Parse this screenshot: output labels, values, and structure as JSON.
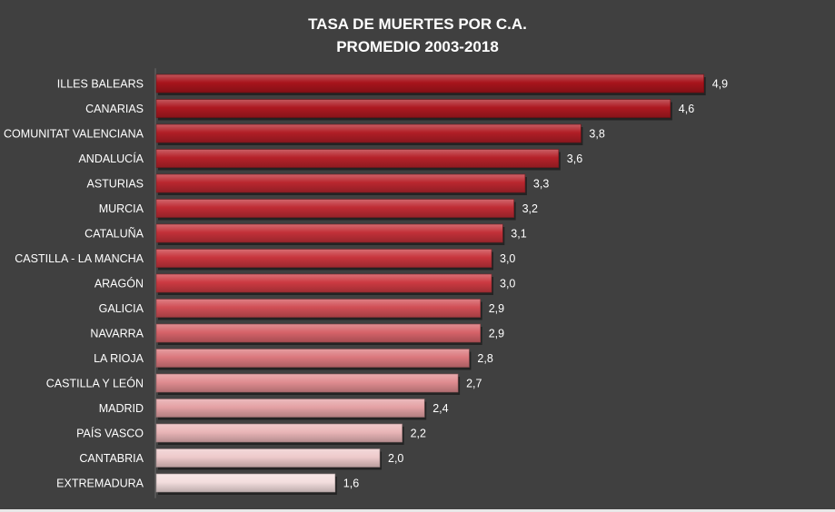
{
  "chart_data": {
    "type": "bar",
    "orientation": "horizontal",
    "title": "TASA DE MUERTES POR C.A.",
    "subtitle": "PROMEDIO 2003-2018",
    "xlabel": "",
    "ylabel": "",
    "grid": false,
    "legend": "none",
    "xlim": [
      0,
      5.2
    ],
    "categories": [
      "ILLES BALEARS",
      "CANARIAS",
      "COMUNITAT VALENCIANA",
      "ANDALUCÍA",
      "ASTURIAS",
      "MURCIA",
      "CATALUÑA",
      "CASTILLA - LA MANCHA",
      "ARAGÓN",
      "GALICIA",
      "NAVARRA",
      "LA RIOJA",
      "CASTILLA Y LEÓN",
      "MADRID",
      "PAÍS VASCO",
      "CANTABRIA",
      "EXTREMADURA"
    ],
    "values": [
      4.9,
      4.6,
      3.8,
      3.6,
      3.3,
      3.2,
      3.1,
      3.0,
      3.0,
      2.9,
      2.9,
      2.8,
      2.7,
      2.4,
      2.2,
      2.0,
      1.6
    ],
    "value_labels": [
      "4,9",
      "4,6",
      "3,8",
      "3,6",
      "3,3",
      "3,2",
      "3,1",
      "3,0",
      "3,0",
      "2,9",
      "2,9",
      "2,8",
      "2,7",
      "2,4",
      "2,2",
      "2,0",
      "1,6"
    ],
    "colors": {
      "background": "#404040",
      "bar_dark": "#a8141c",
      "bar_mid": "#cc3a42",
      "bar_light": "#f3dede",
      "text": "#ffffff"
    }
  }
}
